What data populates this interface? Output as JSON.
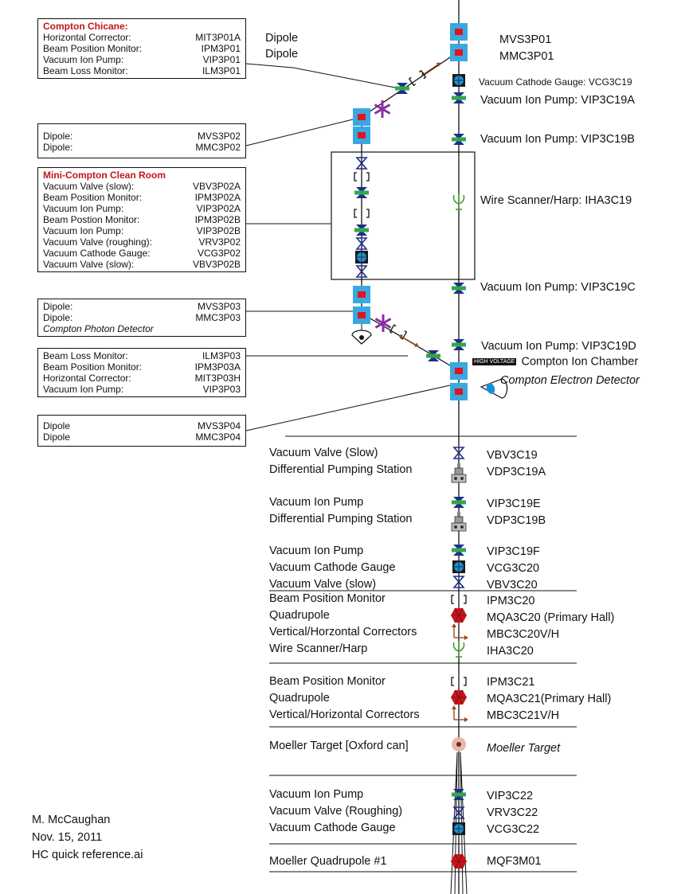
{
  "boxes": {
    "chicane": {
      "title": "Compton Chicane:",
      "rows": [
        {
          "label": "Horizontal Corrector:",
          "id": "MIT3P01A"
        },
        {
          "label": "Beam Position Monitor:",
          "id": "IPM3P01"
        },
        {
          "label": "Vacuum Ion Pump:",
          "id": "VIP3P01"
        },
        {
          "label": "Beam Loss Monitor:",
          "id": "ILM3P01"
        }
      ]
    },
    "dipole_p02": {
      "rows": [
        {
          "label": "Dipole:",
          "id": "MVS3P02"
        },
        {
          "label": "Dipole:",
          "id": "MMC3P02"
        }
      ]
    },
    "clean_room": {
      "title": "Mini-Compton Clean Room",
      "rows": [
        {
          "label": "Vacuum Valve (slow):",
          "id": "VBV3P02A"
        },
        {
          "label": "Beam Position Monitor:",
          "id": "IPM3P02A"
        },
        {
          "label": "Vacuum Ion Pump:",
          "id": "VIP3P02A"
        },
        {
          "label": "Beam Postion Monitor:",
          "id": "IPM3P02B"
        },
        {
          "label": "Vacuum Ion Pump:",
          "id": "VIP3P02B"
        },
        {
          "label": "Vacuum Valve (roughing):",
          "id": "VRV3P02"
        },
        {
          "label": "Vacuum Cathode Gauge:",
          "id": "VCG3P02"
        },
        {
          "label": "Vacuum Valve (slow):",
          "id": "VBV3P02B"
        }
      ]
    },
    "dipole_p03": {
      "rows": [
        {
          "label": "Dipole:",
          "id": "MVS3P03"
        },
        {
          "label": "Dipole:",
          "id": "MMC3P03"
        }
      ],
      "note": "Compton Photon Detector"
    },
    "loss_p03": {
      "rows": [
        {
          "label": "Beam Loss Monitor:",
          "id": "ILM3P03"
        },
        {
          "label": "Beam Position Monitor:",
          "id": "IPM3P03A"
        },
        {
          "label": "Horizontal Corrector:",
          "id": "MIT3P03H"
        },
        {
          "label": "Vacuum Ion Pump:",
          "id": "VIP3P03"
        }
      ]
    },
    "dipole_p04": {
      "rows": [
        {
          "label": "Dipole",
          "id": "MVS3P04"
        },
        {
          "label": "Dipole",
          "id": "MMC3P04"
        }
      ]
    }
  },
  "top_labels": {
    "dipole_1": "Dipole",
    "dipole_2": "Dipole",
    "mvs": "MVS3P01",
    "mmc": "MMC3P01",
    "vcg": "Vacuum Cathode Gauge: VCG3C19",
    "vip_a": "Vacuum Ion Pump:  VIP3C19A",
    "vip_b": "Vacuum Ion Pump:  VIP3C19B",
    "harp": "Wire Scanner/Harp:  IHA3C19",
    "vip_c": "Vacuum Ion Pump:      VIP3C19C",
    "vip_d": "Vacuum Ion Pump:    VIP3C19D",
    "high_voltage": "HIGH VOLTAGE",
    "ion_chamber": "Compton Ion Chamber",
    "electron_detector": "Compton Electron Detector"
  },
  "groups": [
    {
      "left": [
        "Vacuum Valve (Slow)",
        "Differential Pumping Station"
      ],
      "right": [
        "VBV3C19",
        "VDP3C19A"
      ]
    },
    {
      "left": [
        "Vacuum Ion Pump",
        "Differential Pumping Station"
      ],
      "right": [
        "VIP3C19E",
        "VDP3C19B"
      ]
    },
    {
      "left": [
        "Vacuum Ion Pump",
        "Vacuum Cathode Gauge",
        "Vacuum Valve (slow)"
      ],
      "right": [
        "VIP3C19F",
        "VCG3C20",
        "VBV3C20"
      ]
    },
    {
      "left": [
        "Beam Position Monitor",
        "Quadrupole",
        "Vertical/Horzontal Correctors",
        "Wire Scanner/Harp"
      ],
      "right": [
        "IPM3C20",
        "MQA3C20 (Primary Hall)",
        "MBC3C20V/H",
        "IHA3C20"
      ]
    },
    {
      "left": [
        "Beam Position Monitor",
        "Quadrupole",
        "Vertical/Horizontal Correctors"
      ],
      "right": [
        "IPM3C21",
        "MQA3C21(Primary Hall)",
        "MBC3C21V/H"
      ]
    },
    {
      "left": [
        "Moeller Target [Oxford can]"
      ],
      "right": [
        "Moeller Target"
      ]
    },
    {
      "left": [
        "Vacuum Ion Pump",
        "Vacuum Valve (Roughing)",
        "Vacuum Cathode Gauge"
      ],
      "right": [
        "VIP3C22",
        "VRV3C22",
        "VCG3C22"
      ]
    },
    {
      "left": [
        "Moeller Quadrupole #1"
      ],
      "right": [
        "MQF3M01"
      ]
    }
  ],
  "credit": [
    "M. McCaughan",
    "Nov. 15, 2011",
    "HC quick reference.ai"
  ],
  "colors": {
    "dipole_outer": "#3aa8e0",
    "dipole_inner": "#e0141e",
    "pump_bar": "#2ea84a",
    "valve": "#1f2f8a",
    "gauge": "#1b8fd6",
    "quad": "#c4161c",
    "corrector": "#9a4a1a",
    "chamber": "#8a2fa0",
    "title_red": "#c0161e"
  }
}
